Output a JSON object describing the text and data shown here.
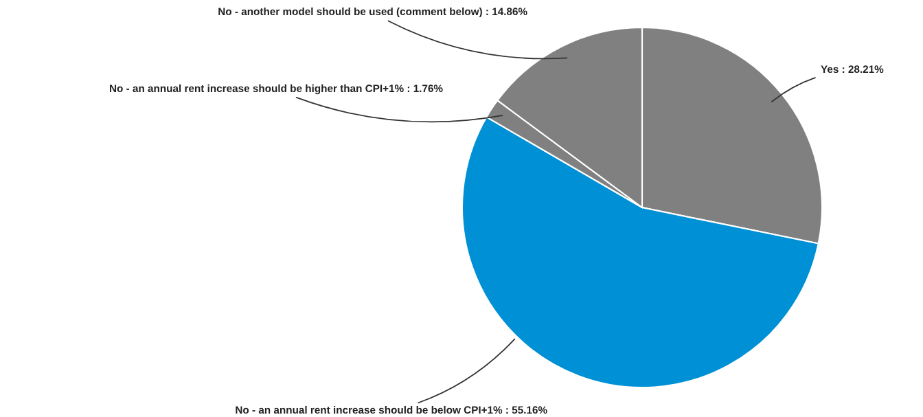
{
  "chart_data": {
    "type": "pie",
    "categories": [
      "Yes : 28.21%",
      "No - an annual rent increase should be below CPI+1% : 55.16%",
      "No - an annual rent increase should be higher than CPI+1% : 1.76%",
      "No - another model should be used (comment below) : 14.86%"
    ],
    "values": [
      28.21,
      55.16,
      1.76,
      14.86
    ],
    "colors": [
      "#808080",
      "#0090d5",
      "#808080",
      "#808080"
    ]
  }
}
